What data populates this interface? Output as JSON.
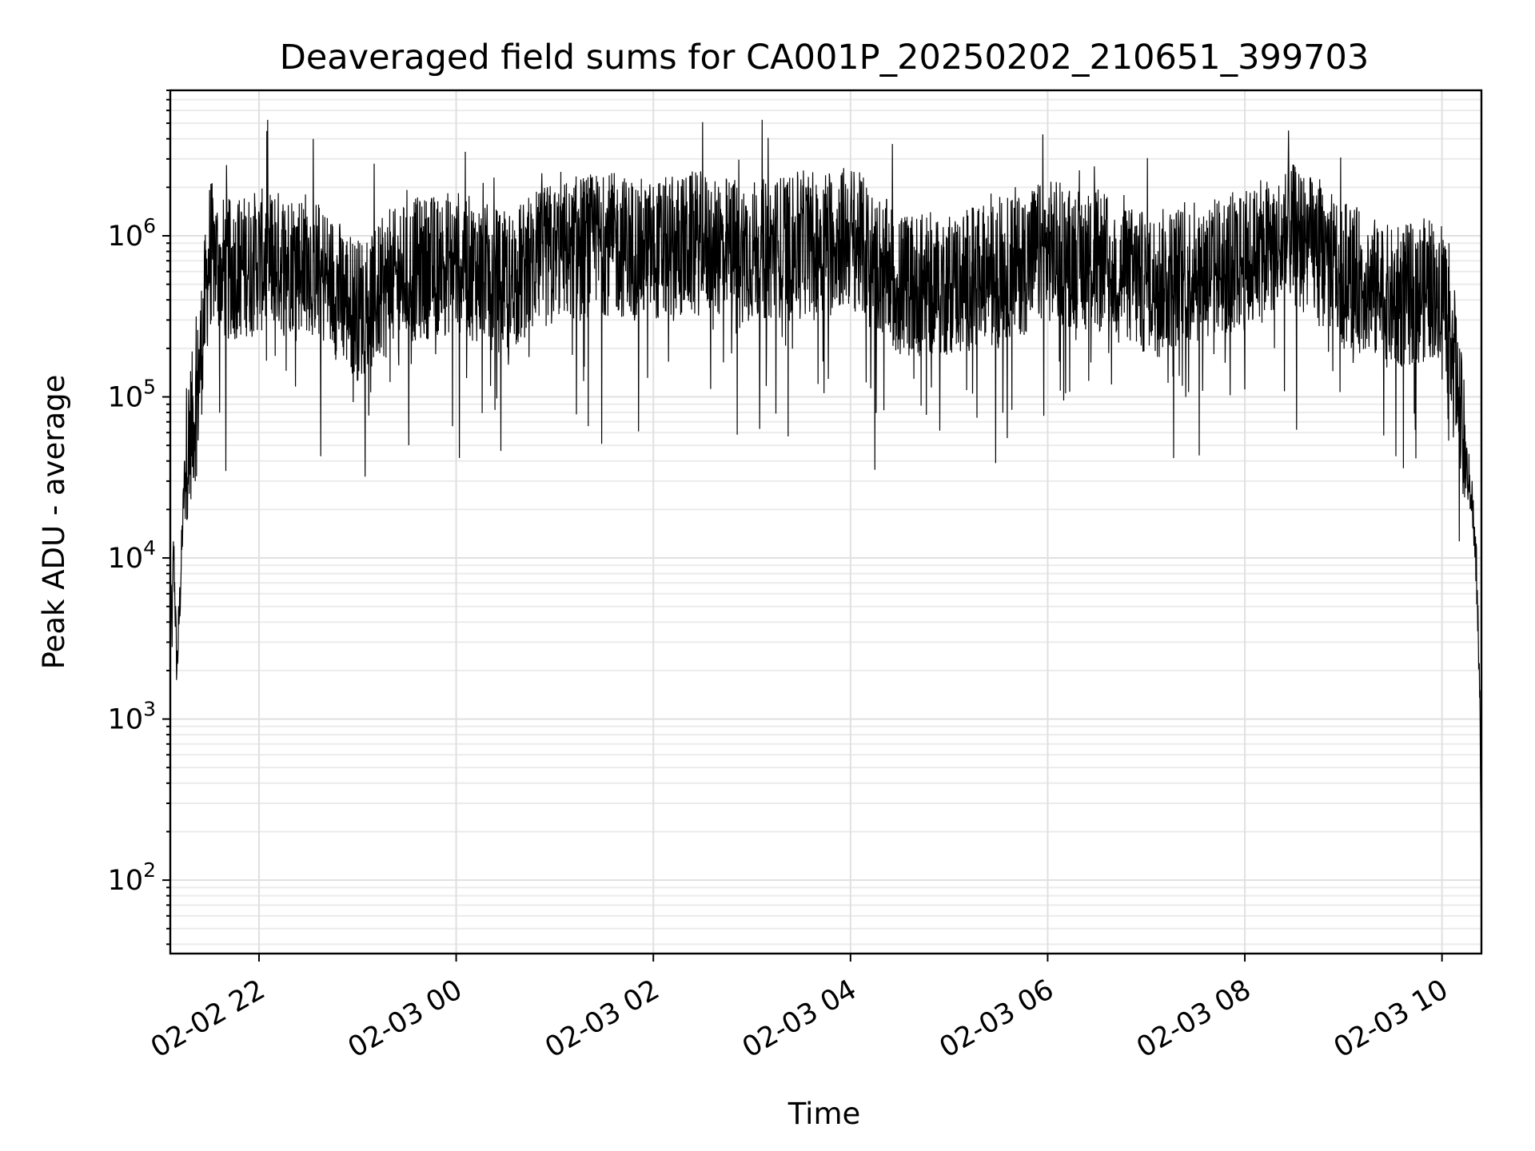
{
  "chart_data": {
    "type": "line",
    "title": "Deaveraged field sums for CA001P_20250202_210651_399703",
    "xlabel": "Time",
    "ylabel": "Peak ADU - average",
    "yscale": "log",
    "ylim": [
      35,
      8000000
    ],
    "xlim": [
      "2025-02-02 21:06",
      "2025-02-03 10:24"
    ],
    "grid": true,
    "x_ticks": [
      {
        "value": "2025-02-02 22:00",
        "label": "02-02 22"
      },
      {
        "value": "2025-02-03 00:00",
        "label": "02-03 00"
      },
      {
        "value": "2025-02-03 02:00",
        "label": "02-03 02"
      },
      {
        "value": "2025-02-03 04:00",
        "label": "02-03 04"
      },
      {
        "value": "2025-02-03 06:00",
        "label": "02-03 06"
      },
      {
        "value": "2025-02-03 08:00",
        "label": "02-03 08"
      },
      {
        "value": "2025-02-03 10:00",
        "label": "02-03 10"
      }
    ],
    "y_ticks": [
      {
        "value": 100,
        "base": "10",
        "exp": "2"
      },
      {
        "value": 1000,
        "base": "10",
        "exp": "3"
      },
      {
        "value": 10000,
        "base": "10",
        "exp": "4"
      },
      {
        "value": 100000,
        "base": "10",
        "exp": "5"
      },
      {
        "value": 1000000,
        "base": "10",
        "exp": "6"
      }
    ],
    "series": [
      {
        "color": "#000000",
        "x": [
          "2025-02-02 21:06",
          "2025-02-02 21:07",
          "2025-02-02 21:08",
          "2025-02-02 21:10",
          "2025-02-02 21:12",
          "2025-02-02 21:15",
          "2025-02-02 21:18",
          "2025-02-02 21:22",
          "2025-02-02 21:30",
          "2025-02-02 21:40",
          "2025-02-02 22:00",
          "2025-02-02 22:30",
          "2025-02-02 23:00",
          "2025-02-02 23:30",
          "2025-02-03 00:00",
          "2025-02-03 00:30",
          "2025-02-03 01:00",
          "2025-02-03 01:30",
          "2025-02-03 02:00",
          "2025-02-03 02:30",
          "2025-02-03 03:00",
          "2025-02-03 03:30",
          "2025-02-03 04:00",
          "2025-02-03 04:30",
          "2025-02-03 05:00",
          "2025-02-03 05:30",
          "2025-02-03 06:00",
          "2025-02-03 06:30",
          "2025-02-03 07:00",
          "2025-02-03 07:30",
          "2025-02-03 08:00",
          "2025-02-03 08:30",
          "2025-02-03 09:00",
          "2025-02-03 09:30",
          "2025-02-03 10:00",
          "2025-02-03 10:05",
          "2025-02-03 10:10",
          "2025-02-03 10:14",
          "2025-02-03 10:18",
          "2025-02-03 10:21",
          "2025-02-03 10:23",
          "2025-02-03 10:24"
        ],
        "y": [
          8000,
          3000,
          12000,
          2000,
          6000,
          40000,
          60000,
          90000,
          800000,
          600000,
          700000,
          700000,
          350000,
          600000,
          700000,
          500000,
          800000,
          900000,
          800000,
          900000,
          800000,
          900000,
          1000000,
          500000,
          500000,
          600000,
          800000,
          700000,
          500000,
          600000,
          700000,
          1000000,
          600000,
          400000,
          500000,
          300000,
          100000,
          40000,
          25000,
          8000,
          1500,
          60
        ]
      }
    ]
  }
}
